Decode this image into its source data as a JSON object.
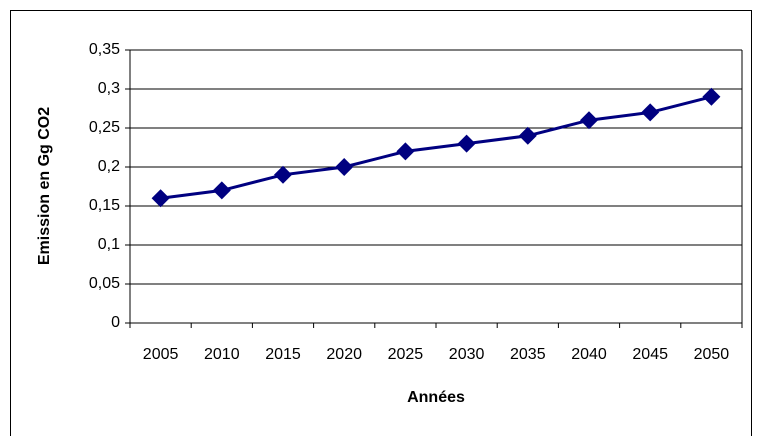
{
  "chart_data": {
    "type": "line",
    "categories": [
      "2005",
      "2010",
      "2015",
      "2020",
      "2025",
      "2030",
      "2035",
      "2040",
      "2045",
      "2050"
    ],
    "series": [
      {
        "color": "#000080",
        "values": [
          0.16,
          0.17,
          0.19,
          0.2,
          0.22,
          0.23,
          0.24,
          0.26,
          0.27,
          0.29
        ]
      }
    ],
    "ylim": [
      0,
      0.35
    ],
    "yticks": [
      0,
      {
        "value": 0.05,
        "label": "0,05"
      },
      {
        "value": 0.1,
        "label": "0,1"
      },
      {
        "value": 0.15,
        "label": "0,15"
      },
      {
        "value": 0.2,
        "label": "0,2"
      },
      {
        "value": 0.25,
        "label": "0,25"
      },
      {
        "value": 0.3,
        "label": "0,3"
      },
      {
        "value": 0.35,
        "label": "0,35"
      }
    ],
    "grid": true,
    "xlabel": "Années",
    "ylabel": "Emission en Gg CO2"
  }
}
